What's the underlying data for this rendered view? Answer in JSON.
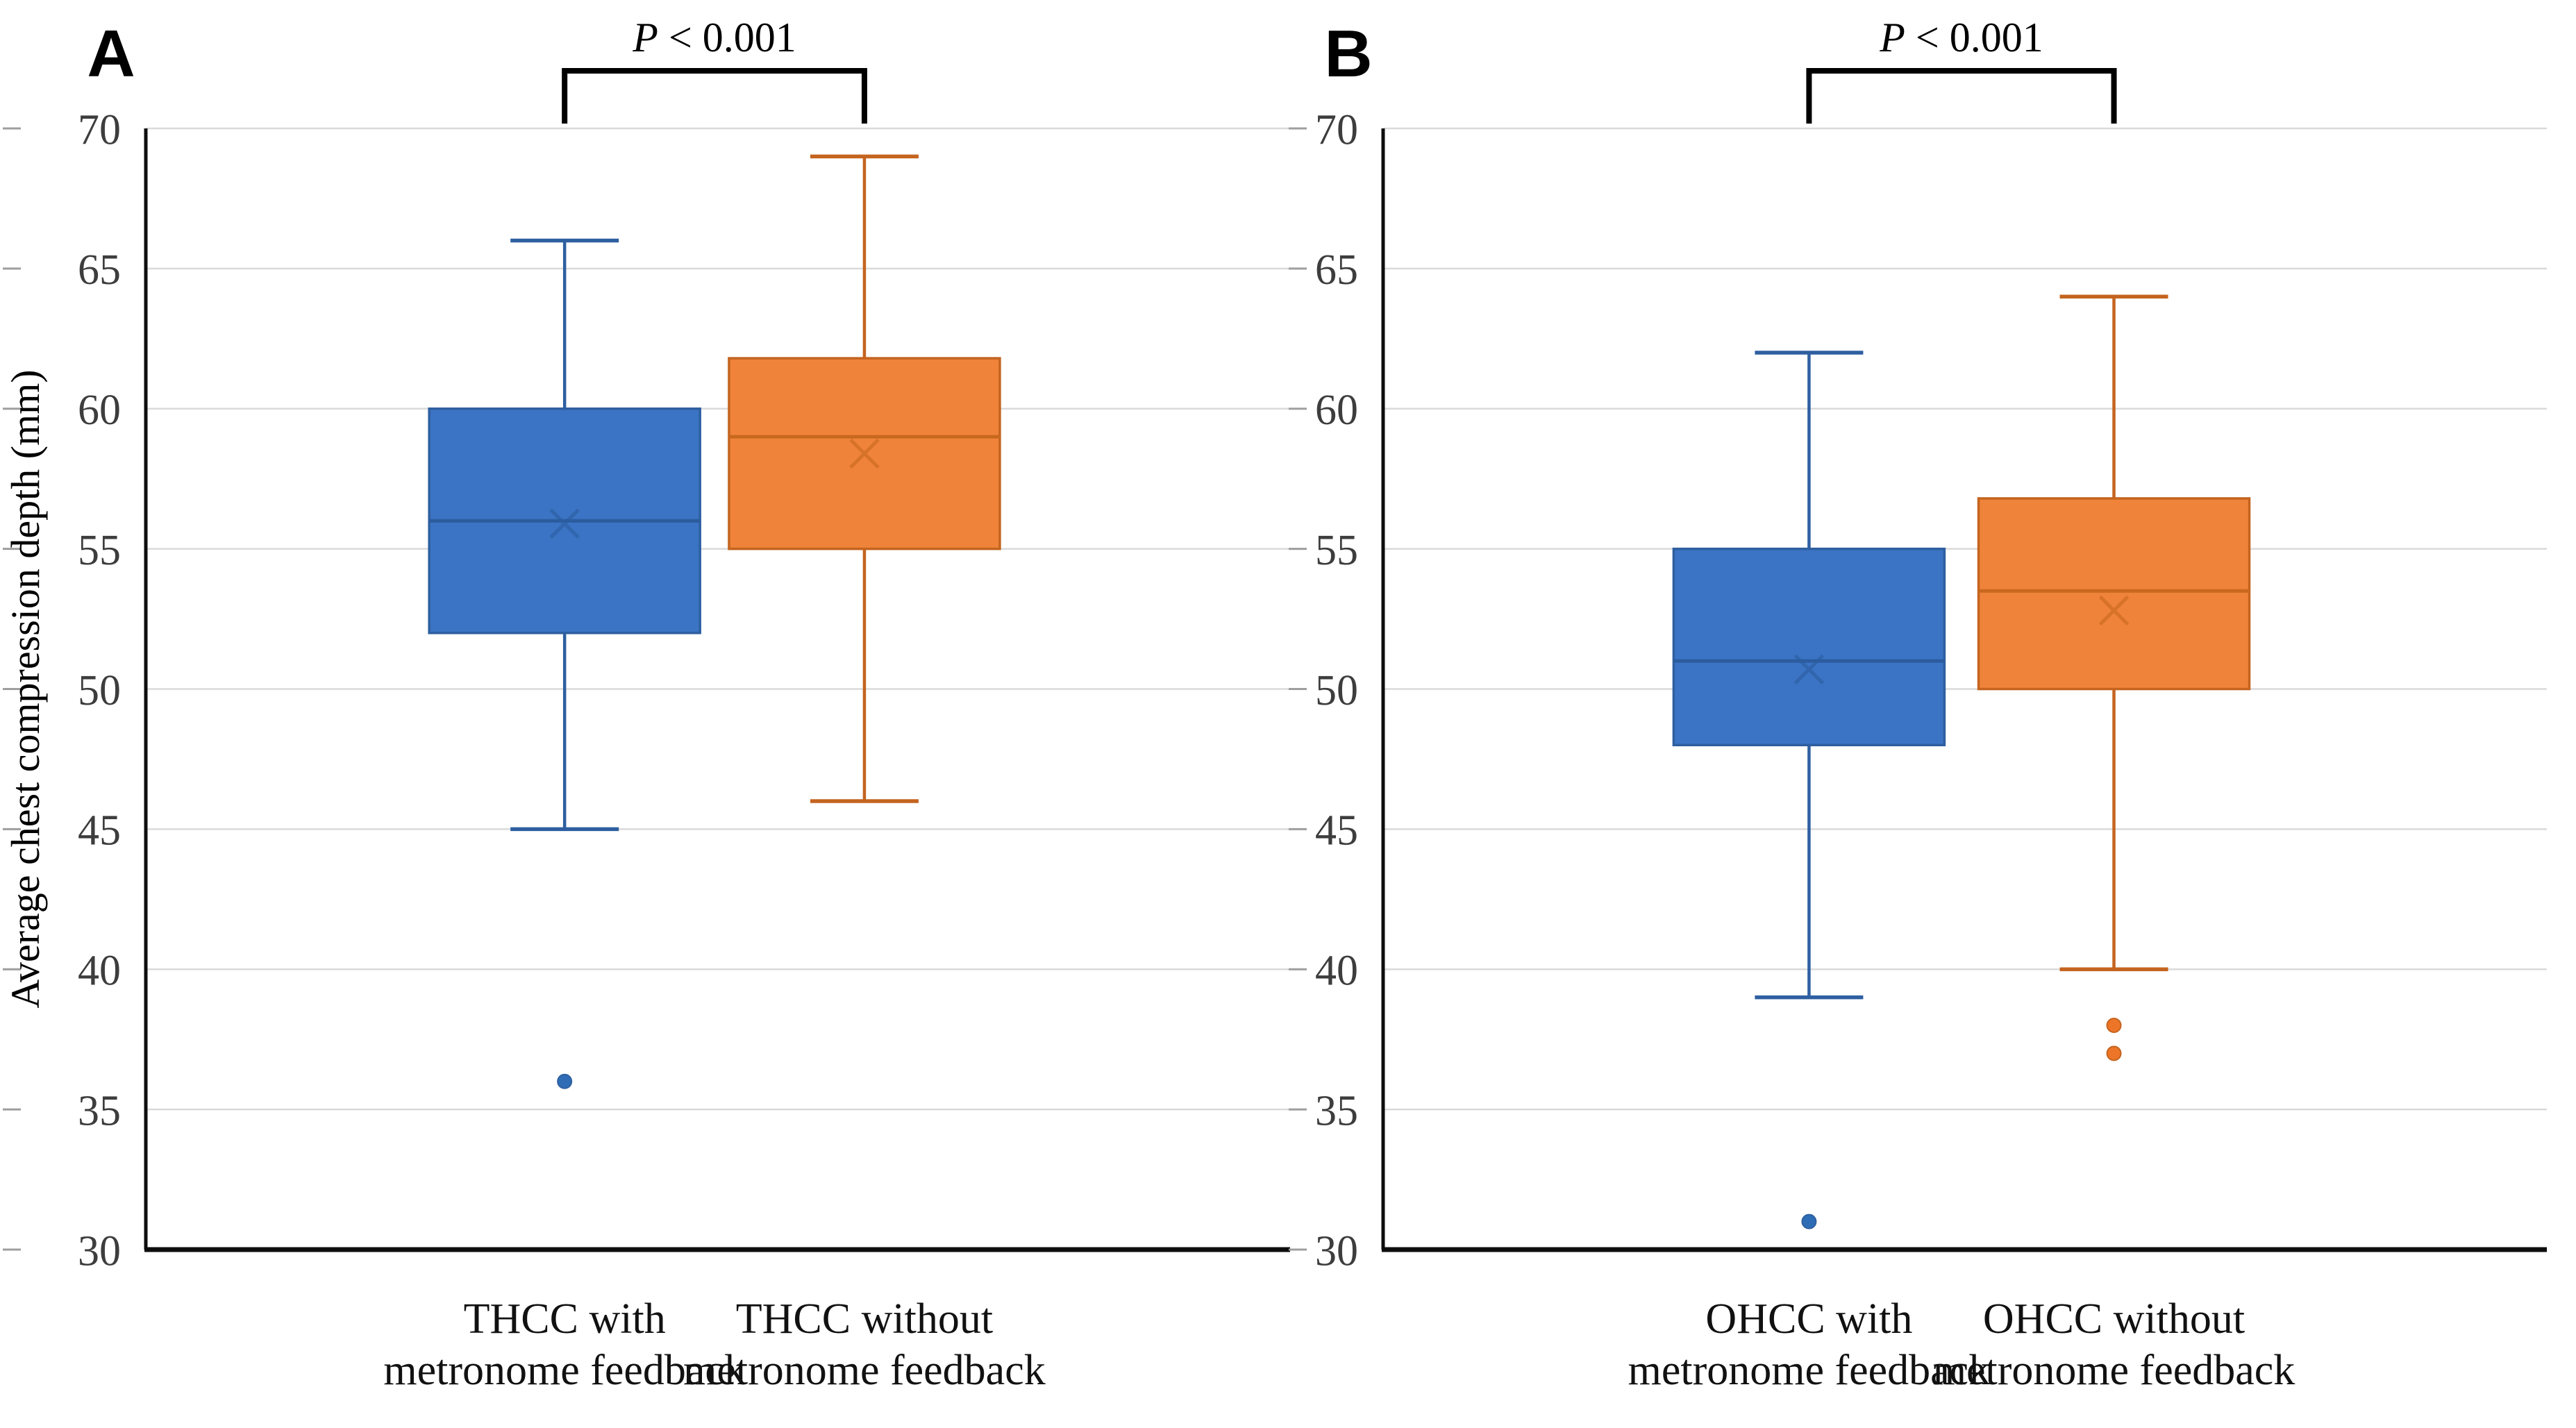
{
  "figure": {
    "ylabel": "Average chest compression depth (mm)",
    "p_annotation": "P < 0.001"
  },
  "colors": {
    "blue_fill": "#3B74C4",
    "blue_line": "#2E5FA0",
    "blue_median": "#2B5C9E",
    "blue_outlier": "#2E6DB5",
    "orange_fill": "#F0833A",
    "orange_line": "#C4641F",
    "orange_median": "#C8681F",
    "orange_outlier": "#ED7528",
    "grid": "#DADADA",
    "axis": "#0D0D0D",
    "bracket": "#000000",
    "tick_label": "#3D3D3D",
    "category_label": "#111111"
  },
  "chart_data": [
    {
      "type": "boxplot",
      "panel_label": "A",
      "annotation": "P < 0.001",
      "ylabel": "Average chest compression depth (mm)",
      "ylim": [
        30,
        70
      ],
      "ytick_step": 5,
      "grid": true,
      "legend": "none",
      "categories": [
        "THCC with metronome feedback",
        "THCC without metronome feedback"
      ],
      "series": [
        {
          "name": "THCC with metronome feedback",
          "label_lines": [
            "THCC with",
            "metronome feedback"
          ],
          "whisker_low": 45,
          "q1": 52,
          "median": 56,
          "mean": 55.9,
          "q3": 60,
          "whisker_high": 66,
          "outliers": [
            36
          ],
          "fill": "#3B74C4",
          "line": "#2E5FA0",
          "median_color": "#2B5C9E",
          "outlier_color": "#2E6DB5"
        },
        {
          "name": "THCC without metronome feedback",
          "label_lines": [
            "THCC without",
            "metronome feedback"
          ],
          "whisker_low": 46,
          "q1": 55,
          "median": 59,
          "mean": 58.4,
          "q3": 61.8,
          "whisker_high": 69,
          "outliers": [],
          "fill": "#F0833A",
          "line": "#C4641F",
          "median_color": "#C8681F",
          "outlier_color": "#ED7528"
        }
      ]
    },
    {
      "type": "boxplot",
      "panel_label": "B",
      "annotation": "P < 0.001",
      "ylabel": "",
      "ylim": [
        30,
        70
      ],
      "ytick_step": 5,
      "grid": true,
      "legend": "none",
      "categories": [
        "OHCC with metronome feedback",
        "OHCC without metronome feedback"
      ],
      "series": [
        {
          "name": "OHCC with metronome feedback",
          "label_lines": [
            "OHCC with",
            "metronome feedback"
          ],
          "whisker_low": 39,
          "q1": 48,
          "median": 51,
          "mean": 50.7,
          "q3": 55,
          "whisker_high": 62,
          "outliers": [
            31
          ],
          "fill": "#3B74C4",
          "line": "#2E5FA0",
          "median_color": "#2B5C9E",
          "outlier_color": "#2E6DB5"
        },
        {
          "name": "OHCC without metronome feedback",
          "label_lines": [
            "OHCC without",
            "metronome feedback"
          ],
          "whisker_low": 40,
          "q1": 50,
          "median": 53.5,
          "mean": 52.8,
          "q3": 56.8,
          "whisker_high": 64,
          "outliers": [
            38,
            37
          ],
          "fill": "#F0833A",
          "line": "#C4641F",
          "median_color": "#C8681F",
          "outlier_color": "#ED7528"
        }
      ]
    }
  ]
}
